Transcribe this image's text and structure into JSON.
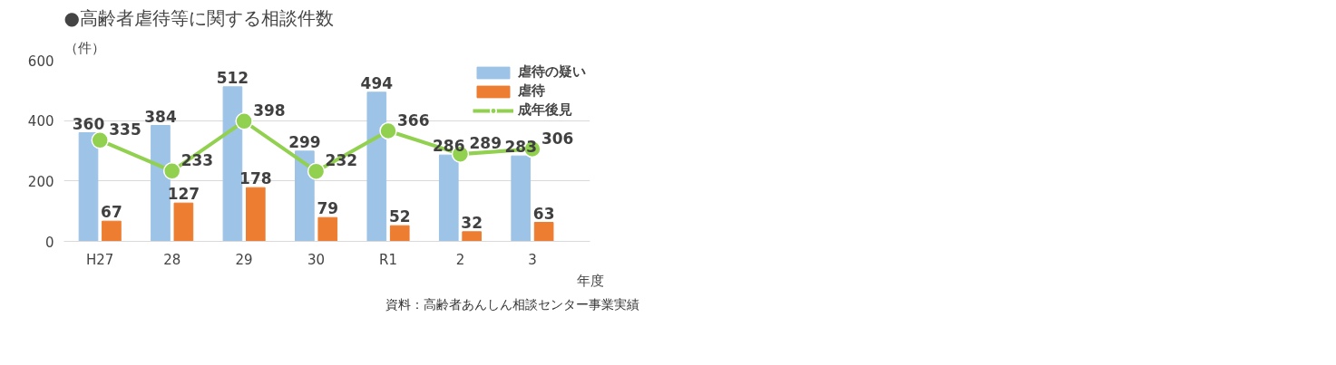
{
  "chart_data": {
    "type": "bar",
    "title": "●高齢者虐待等に関する相談件数",
    "ylabel": "（件）",
    "xlabel": "年度",
    "categories": [
      "H27",
      "28",
      "29",
      "30",
      "R1",
      "2",
      "3"
    ],
    "series": [
      {
        "name": "虐待の疑い",
        "color": "#9dc3e6",
        "values": [
          360,
          384,
          512,
          299,
          494,
          286,
          283
        ]
      },
      {
        "name": "虐待",
        "color": "#ed7d31",
        "values": [
          67,
          127,
          178,
          79,
          52,
          32,
          63
        ]
      },
      {
        "name": "成年後見",
        "type": "line",
        "color": "#92d050",
        "marker": "circle",
        "values": [
          335,
          233,
          398,
          232,
          366,
          289,
          306
        ]
      }
    ],
    "ylim": [
      0,
      600
    ],
    "yticks": [
      0,
      200,
      400,
      600
    ],
    "grid": "y",
    "legend": "top right",
    "data_labels": true,
    "annotations": [
      "資料：高齢者あんしん相談センター事業実績"
    ]
  }
}
